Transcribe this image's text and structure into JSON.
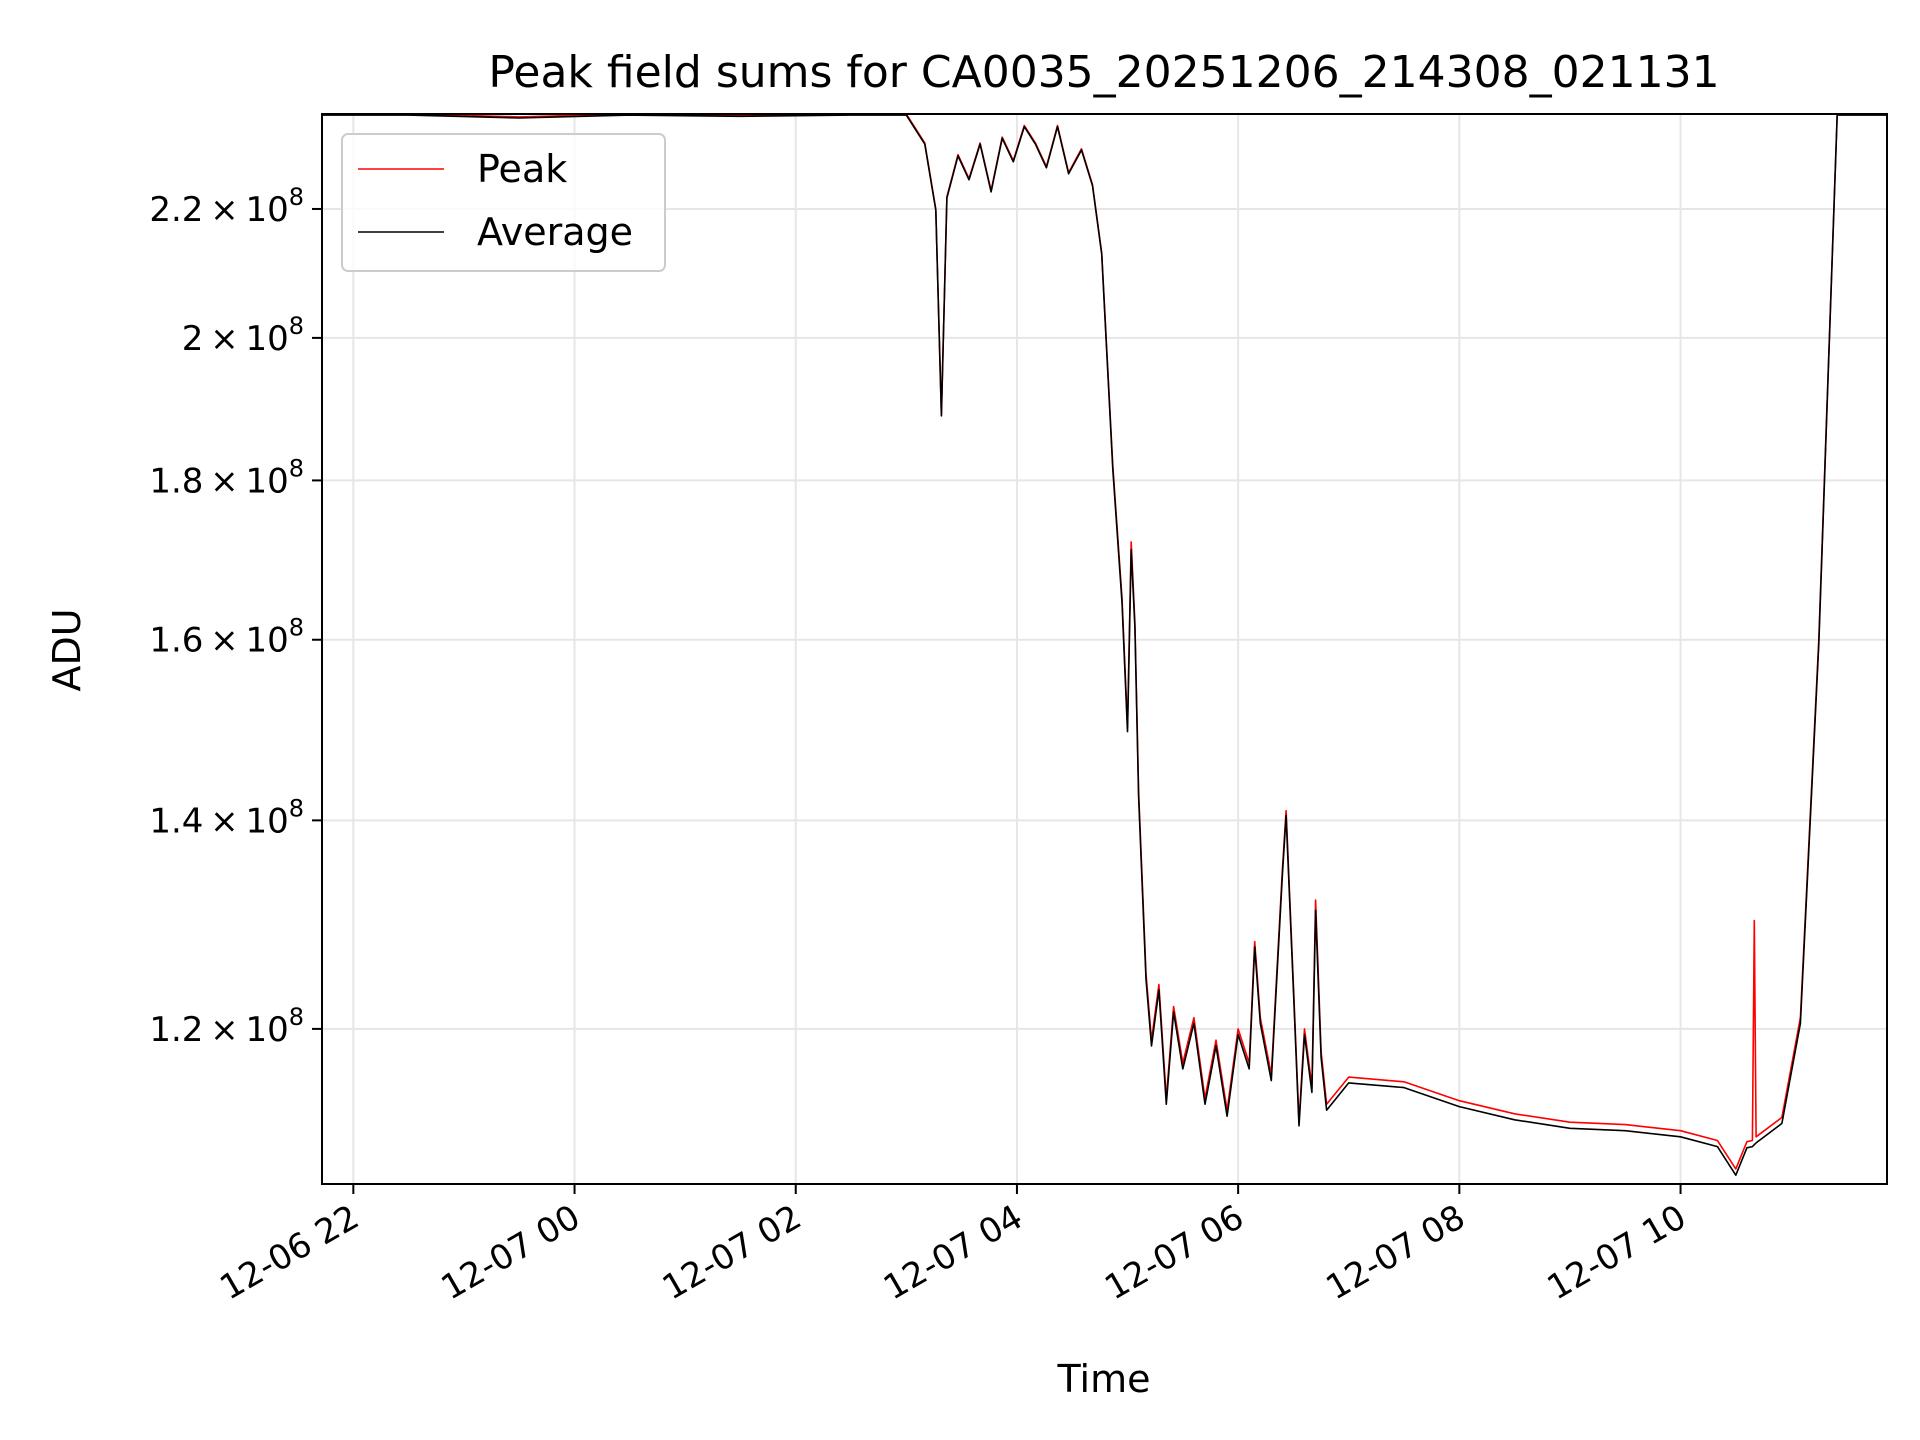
{
  "chart_data": {
    "type": "line",
    "title": "Peak field sums for CA0035_20251206_214308_021131",
    "xlabel": "Time",
    "ylabel": "ADU",
    "yscale": "log",
    "grid": true,
    "legend_position": "upper-left",
    "xlim": [
      "2025-12-06 21:43",
      "2025-12-07 11:52"
    ],
    "ylim": [
      107000000,
      236000000
    ],
    "x_ticks": [
      {
        "value": "2025-12-06 22:00",
        "label": "12-06 22"
      },
      {
        "value": "2025-12-07 00:00",
        "label": "12-07 00"
      },
      {
        "value": "2025-12-07 02:00",
        "label": "12-07 02"
      },
      {
        "value": "2025-12-07 04:00",
        "label": "12-07 04"
      },
      {
        "value": "2025-12-07 06:00",
        "label": "12-07 06"
      },
      {
        "value": "2025-12-07 08:00",
        "label": "12-07 08"
      },
      {
        "value": "2025-12-07 10:00",
        "label": "12-07 10"
      }
    ],
    "y_ticks": [
      {
        "value": 120000000,
        "mantissa": "1.2",
        "base": "10",
        "exp": "8"
      },
      {
        "value": 140000000,
        "mantissa": "1.4",
        "base": "10",
        "exp": "8"
      },
      {
        "value": 160000000,
        "mantissa": "1.6",
        "base": "10",
        "exp": "8"
      },
      {
        "value": 180000000,
        "mantissa": "1.8",
        "base": "10",
        "exp": "8"
      },
      {
        "value": 200000000,
        "mantissa": "2",
        "base": "10",
        "exp": "8"
      },
      {
        "value": 220000000,
        "mantissa": "2.2",
        "base": "10",
        "exp": "8"
      }
    ],
    "series": [
      {
        "name": "Peak",
        "color": "#ff0000",
        "points": [
          [
            "2025-12-06 21:43",
            236000000
          ],
          [
            "2025-12-06 22:30",
            236000000
          ],
          [
            "2025-12-06 23:30",
            235500000
          ],
          [
            "2025-12-07 00:30",
            236000000
          ],
          [
            "2025-12-07 01:30",
            235800000
          ],
          [
            "2025-12-07 02:30",
            236000000
          ],
          [
            "2025-12-07 03:00",
            236000000
          ],
          [
            "2025-12-07 03:10",
            231000000
          ],
          [
            "2025-12-07 03:16",
            220000000
          ],
          [
            "2025-12-07 03:19",
            189000000
          ],
          [
            "2025-12-07 03:22",
            222000000
          ],
          [
            "2025-12-07 03:28",
            229000000
          ],
          [
            "2025-12-07 03:34",
            225000000
          ],
          [
            "2025-12-07 03:40",
            231000000
          ],
          [
            "2025-12-07 03:46",
            223000000
          ],
          [
            "2025-12-07 03:52",
            232000000
          ],
          [
            "2025-12-07 03:58",
            228000000
          ],
          [
            "2025-12-07 04:04",
            234000000
          ],
          [
            "2025-12-07 04:10",
            231000000
          ],
          [
            "2025-12-07 04:16",
            227000000
          ],
          [
            "2025-12-07 04:22",
            234000000
          ],
          [
            "2025-12-07 04:28",
            226000000
          ],
          [
            "2025-12-07 04:35",
            230000000
          ],
          [
            "2025-12-07 04:41",
            224000000
          ],
          [
            "2025-12-07 04:46",
            213000000
          ],
          [
            "2025-12-07 04:52",
            182000000
          ],
          [
            "2025-12-07 04:57",
            165000000
          ],
          [
            "2025-12-07 05:00",
            150000000
          ],
          [
            "2025-12-07 05:02",
            172000000
          ],
          [
            "2025-12-07 05:04",
            162000000
          ],
          [
            "2025-12-07 05:06",
            143000000
          ],
          [
            "2025-12-07 05:10",
            125000000
          ],
          [
            "2025-12-07 05:13",
            119000000
          ],
          [
            "2025-12-07 05:17",
            124000000
          ],
          [
            "2025-12-07 05:21",
            114000000
          ],
          [
            "2025-12-07 05:25",
            122000000
          ],
          [
            "2025-12-07 05:30",
            117000000
          ],
          [
            "2025-12-07 05:36",
            121000000
          ],
          [
            "2025-12-07 05:42",
            114000000
          ],
          [
            "2025-12-07 05:48",
            119000000
          ],
          [
            "2025-12-07 05:54",
            113000000
          ],
          [
            "2025-12-07 06:00",
            120000000
          ],
          [
            "2025-12-07 06:06",
            117000000
          ],
          [
            "2025-12-07 06:09",
            128000000
          ],
          [
            "2025-12-07 06:12",
            121000000
          ],
          [
            "2025-12-07 06:18",
            116000000
          ],
          [
            "2025-12-07 06:24",
            135000000
          ],
          [
            "2025-12-07 06:26",
            141000000
          ],
          [
            "2025-12-07 06:30",
            124000000
          ],
          [
            "2025-12-07 06:33",
            112000000
          ],
          [
            "2025-12-07 06:36",
            120000000
          ],
          [
            "2025-12-07 06:40",
            115000000
          ],
          [
            "2025-12-07 06:42",
            132000000
          ],
          [
            "2025-12-07 06:45",
            118000000
          ],
          [
            "2025-12-07 06:48",
            113500000
          ],
          [
            "2025-12-07 07:00",
            115800000
          ],
          [
            "2025-12-07 07:30",
            115400000
          ],
          [
            "2025-12-07 08:00",
            113800000
          ],
          [
            "2025-12-07 08:30",
            112700000
          ],
          [
            "2025-12-07 09:00",
            112000000
          ],
          [
            "2025-12-07 09:30",
            111800000
          ],
          [
            "2025-12-07 10:00",
            111300000
          ],
          [
            "2025-12-07 10:20",
            110500000
          ],
          [
            "2025-12-07 10:30",
            108200000
          ],
          [
            "2025-12-07 10:36",
            110400000
          ],
          [
            "2025-12-07 10:39",
            110500000
          ],
          [
            "2025-12-07 10:40",
            130000000
          ],
          [
            "2025-12-07 10:41",
            110800000
          ],
          [
            "2025-12-07 10:55",
            112400000
          ],
          [
            "2025-12-07 11:05",
            121000000
          ],
          [
            "2025-12-07 11:15",
            160000000
          ],
          [
            "2025-12-07 11:25",
            236000000
          ],
          [
            "2025-12-07 11:52",
            236000000
          ]
        ]
      },
      {
        "name": "Average",
        "color": "#000000",
        "points": [
          [
            "2025-12-06 21:43",
            235800000
          ],
          [
            "2025-12-06 22:30",
            235800000
          ],
          [
            "2025-12-06 23:30",
            235300000
          ],
          [
            "2025-12-07 00:30",
            235800000
          ],
          [
            "2025-12-07 01:30",
            235600000
          ],
          [
            "2025-12-07 02:30",
            235800000
          ],
          [
            "2025-12-07 03:00",
            235800000
          ],
          [
            "2025-12-07 03:10",
            230800000
          ],
          [
            "2025-12-07 03:16",
            219800000
          ],
          [
            "2025-12-07 03:19",
            188800000
          ],
          [
            "2025-12-07 03:22",
            221800000
          ],
          [
            "2025-12-07 03:28",
            228800000
          ],
          [
            "2025-12-07 03:34",
            224800000
          ],
          [
            "2025-12-07 03:40",
            230800000
          ],
          [
            "2025-12-07 03:46",
            222800000
          ],
          [
            "2025-12-07 03:52",
            231800000
          ],
          [
            "2025-12-07 03:58",
            227800000
          ],
          [
            "2025-12-07 04:04",
            233800000
          ],
          [
            "2025-12-07 04:10",
            230800000
          ],
          [
            "2025-12-07 04:16",
            226800000
          ],
          [
            "2025-12-07 04:22",
            233800000
          ],
          [
            "2025-12-07 04:28",
            225800000
          ],
          [
            "2025-12-07 04:35",
            229800000
          ],
          [
            "2025-12-07 04:41",
            223800000
          ],
          [
            "2025-12-07 04:46",
            212800000
          ],
          [
            "2025-12-07 04:52",
            181500000
          ],
          [
            "2025-12-07 04:57",
            164500000
          ],
          [
            "2025-12-07 05:00",
            149500000
          ],
          [
            "2025-12-07 05:02",
            171000000
          ],
          [
            "2025-12-07 05:04",
            161500000
          ],
          [
            "2025-12-07 05:06",
            142500000
          ],
          [
            "2025-12-07 05:10",
            124500000
          ],
          [
            "2025-12-07 05:13",
            118500000
          ],
          [
            "2025-12-07 05:17",
            123500000
          ],
          [
            "2025-12-07 05:21",
            113500000
          ],
          [
            "2025-12-07 05:25",
            121500000
          ],
          [
            "2025-12-07 05:30",
            116500000
          ],
          [
            "2025-12-07 05:36",
            120500000
          ],
          [
            "2025-12-07 05:42",
            113500000
          ],
          [
            "2025-12-07 05:48",
            118500000
          ],
          [
            "2025-12-07 05:54",
            112500000
          ],
          [
            "2025-12-07 06:00",
            119500000
          ],
          [
            "2025-12-07 06:06",
            116500000
          ],
          [
            "2025-12-07 06:09",
            127500000
          ],
          [
            "2025-12-07 06:12",
            120500000
          ],
          [
            "2025-12-07 06:18",
            115500000
          ],
          [
            "2025-12-07 06:24",
            134500000
          ],
          [
            "2025-12-07 06:26",
            140500000
          ],
          [
            "2025-12-07 06:30",
            123500000
          ],
          [
            "2025-12-07 06:33",
            111700000
          ],
          [
            "2025-12-07 06:36",
            119500000
          ],
          [
            "2025-12-07 06:40",
            114500000
          ],
          [
            "2025-12-07 06:42",
            131000000
          ],
          [
            "2025-12-07 06:45",
            117500000
          ],
          [
            "2025-12-07 06:48",
            113000000
          ],
          [
            "2025-12-07 07:00",
            115300000
          ],
          [
            "2025-12-07 07:30",
            114900000
          ],
          [
            "2025-12-07 08:00",
            113300000
          ],
          [
            "2025-12-07 08:30",
            112200000
          ],
          [
            "2025-12-07 09:00",
            111500000
          ],
          [
            "2025-12-07 09:30",
            111300000
          ],
          [
            "2025-12-07 10:00",
            110800000
          ],
          [
            "2025-12-07 10:20",
            110000000
          ],
          [
            "2025-12-07 10:30",
            107700000
          ],
          [
            "2025-12-07 10:36",
            109900000
          ],
          [
            "2025-12-07 10:39",
            110000000
          ],
          [
            "2025-12-07 10:41",
            110300000
          ],
          [
            "2025-12-07 10:55",
            111900000
          ],
          [
            "2025-12-07 11:05",
            120500000
          ],
          [
            "2025-12-07 11:15",
            159500000
          ],
          [
            "2025-12-07 11:25",
            235800000
          ],
          [
            "2025-12-07 11:52",
            235800000
          ]
        ]
      }
    ]
  }
}
